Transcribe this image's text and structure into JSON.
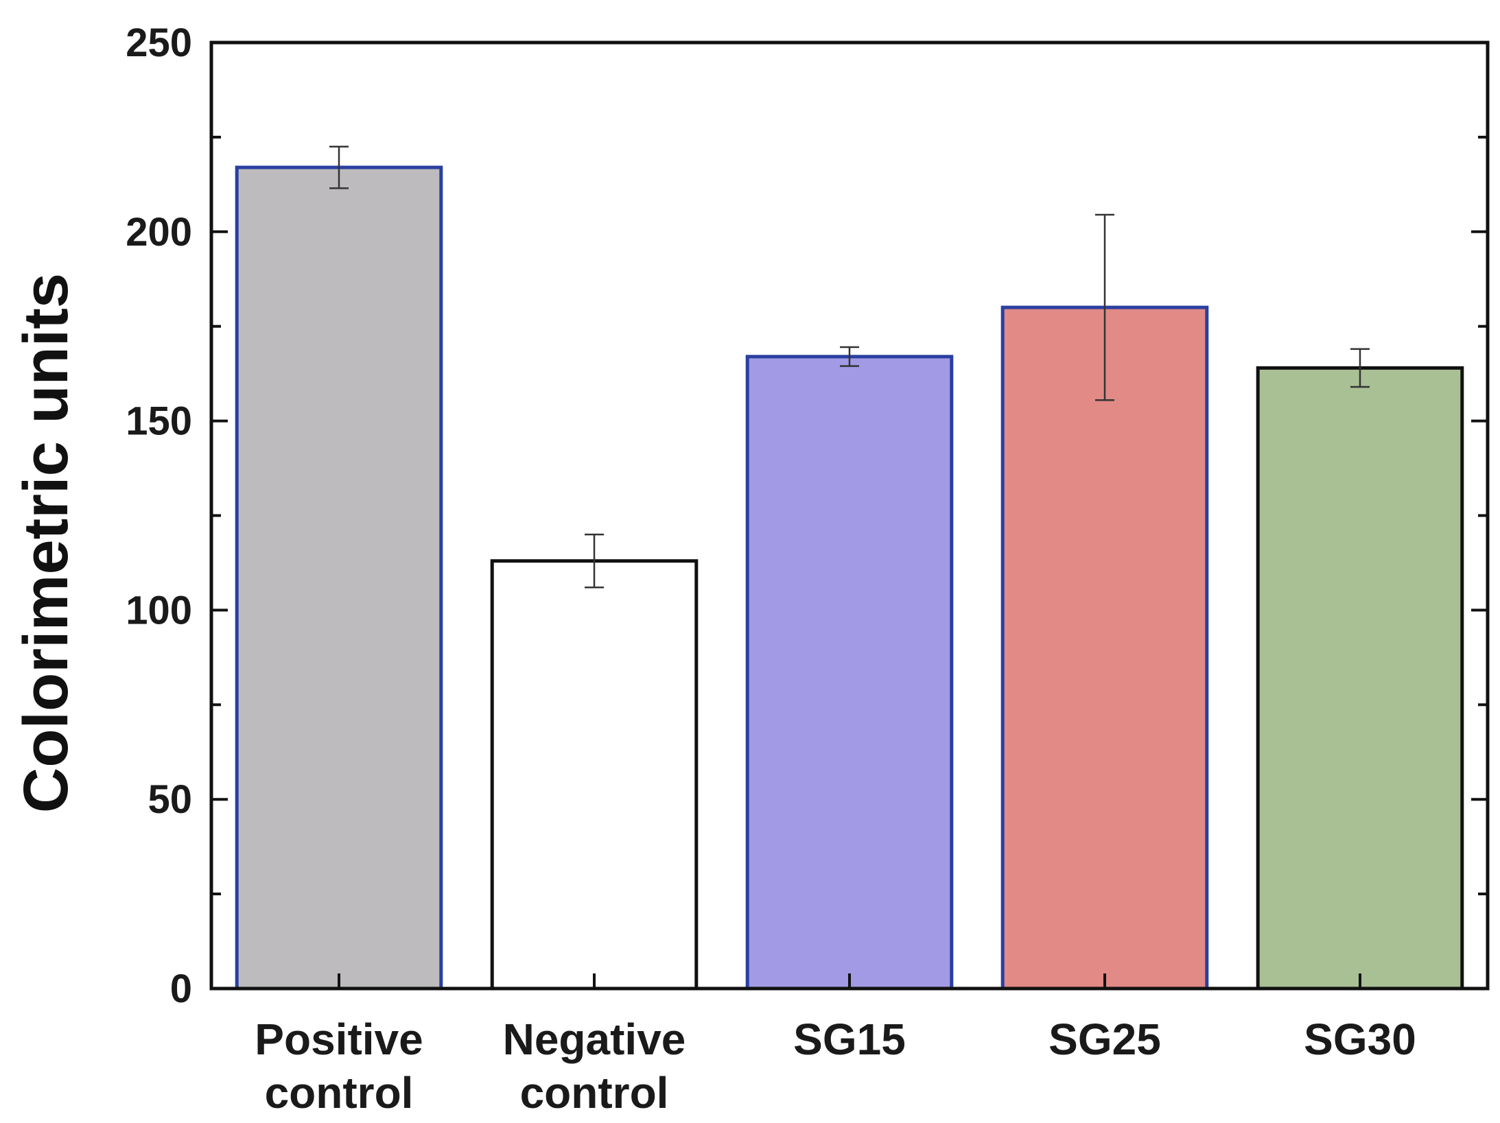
{
  "chart_data": {
    "type": "bar",
    "title": "",
    "xlabel": "",
    "ylabel": "Colorimetric units",
    "ylim": [
      0,
      250
    ],
    "yticks": [
      0,
      50,
      100,
      150,
      200,
      250
    ],
    "categories": [
      [
        "Positive",
        "control"
      ],
      [
        "Negative",
        "control"
      ],
      [
        "SG15"
      ],
      [
        "SG25"
      ],
      [
        "SG30"
      ]
    ],
    "values": [
      217,
      113,
      167,
      180,
      164
    ],
    "errors": [
      5.5,
      7,
      2.5,
      24.5,
      5
    ],
    "fill_colors": [
      "#bdbbbd",
      "#ffffff",
      "#a29ae4",
      "#e18a86",
      "#a9c095"
    ],
    "edge_colors": [
      "#2a3fa0",
      "#111111",
      "#2a3fa0",
      "#2a3fa0",
      "#111111"
    ],
    "grid": false,
    "legend": "none"
  }
}
